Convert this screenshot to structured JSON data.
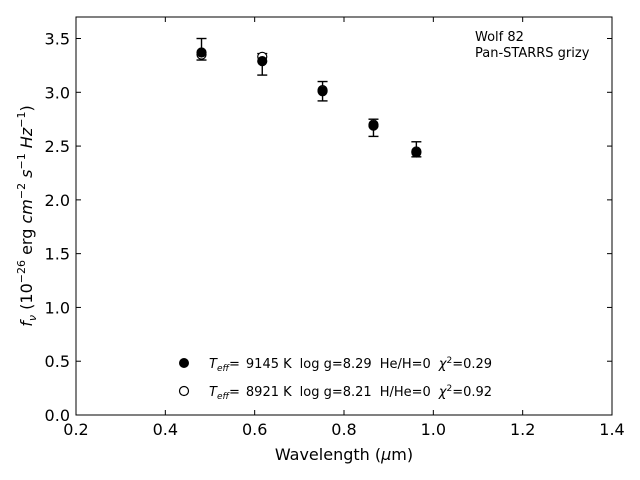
{
  "chart_data": {
    "type": "scatter",
    "xlabel_prefix": "Wavelength (",
    "xlabel_symbol": "μ",
    "xlabel_suffix": "m)",
    "ylabel_prefix": "f",
    "ylabel_sub": "ν",
    "ylabel_unit_a": " (10",
    "ylabel_exp_a": "−26",
    "ylabel_unit_b": " erg ",
    "ylabel_cm": "cm",
    "ylabel_exp_cm": "−2",
    "ylabel_s": " s",
    "ylabel_exp_s": "−1",
    "ylabel_hz": " Hz",
    "ylabel_exp_hz": "−1",
    "ylabel_close": ")",
    "xlim": [
      0.2,
      1.4
    ],
    "ylim": [
      0.0,
      3.7
    ],
    "xticks": [
      "0.2",
      "0.4",
      "0.6",
      "0.8",
      "1.0",
      "1.2",
      "1.4"
    ],
    "yticks": [
      "0.0",
      "0.5",
      "1.0",
      "1.5",
      "2.0",
      "2.5",
      "3.0",
      "3.5"
    ],
    "grid": false,
    "annotations": [
      "Wolf 82",
      "Pan-STARRS grizy"
    ],
    "observed": {
      "x": [
        0.481,
        0.617,
        0.752,
        0.866,
        0.962
      ],
      "y": [
        3.4,
        3.26,
        3.01,
        2.67,
        2.47
      ],
      "err": [
        0.1,
        0.1,
        0.09,
        0.08,
        0.07
      ]
    },
    "series": [
      {
        "marker": "filled",
        "x": [
          0.481,
          0.617,
          0.752,
          0.866,
          0.962
        ],
        "y": [
          3.37,
          3.29,
          3.01,
          2.69,
          2.44
        ],
        "legend": {
          "teff_symbol": "T",
          "teff_sub": "eff",
          "teff_eq": "=",
          "teff_value": "9145 K",
          "logg": "log g=8.29",
          "composition": "He/H=0",
          "chi_symbol": "χ",
          "chi_exp": "2",
          "chi_value": "=0.29"
        }
      },
      {
        "marker": "open",
        "x": [
          0.481,
          0.617,
          0.752,
          0.866,
          0.962
        ],
        "y": [
          3.35,
          3.33,
          3.02,
          2.7,
          2.45
        ],
        "legend": {
          "teff_symbol": "T",
          "teff_sub": "eff",
          "teff_eq": "=",
          "teff_value": "8921 K",
          "logg": "log g=8.21",
          "composition": "H/He=0",
          "chi_symbol": "χ",
          "chi_exp": "2",
          "chi_value": "=0.92"
        }
      }
    ]
  }
}
